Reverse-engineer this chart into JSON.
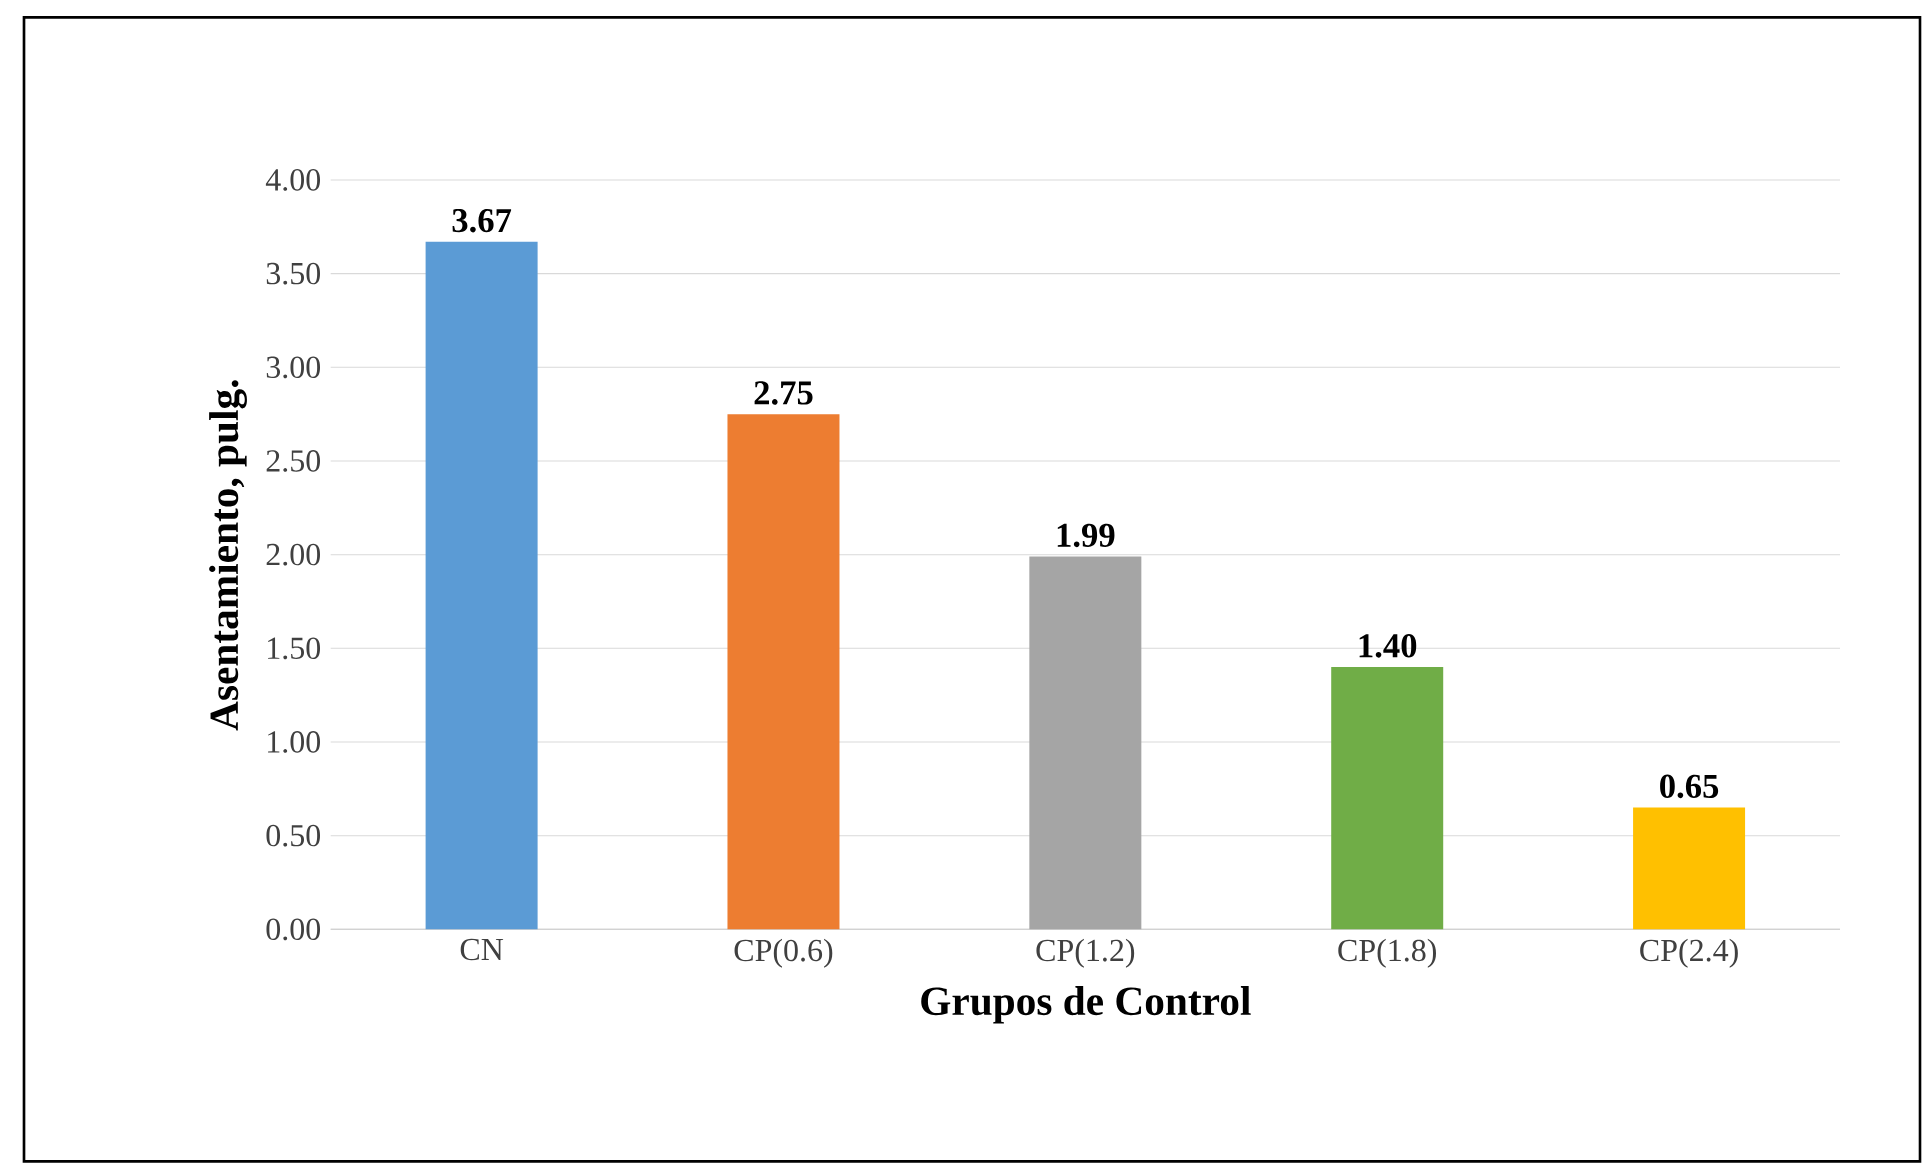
{
  "chart_data": {
    "type": "bar",
    "xlabel": "Grupos de Control",
    "ylabel": "Asentamiento, pulg.",
    "categories": [
      "CN",
      "CP(0.6)",
      "CP(1.2)",
      "CP(1.8)",
      "CP(2.4)"
    ],
    "values": [
      3.67,
      2.75,
      1.99,
      1.4,
      0.65
    ],
    "colors": [
      "#5b9bd5",
      "#ed7d31",
      "#a5a5a5",
      "#70ad47",
      "#ffc000"
    ],
    "value_labels": [
      "3.67",
      "2.75",
      "1.99",
      "1.40",
      "0.65"
    ],
    "ylim": [
      0,
      4
    ],
    "yticks": [
      {
        "value": 0,
        "label": "0.00"
      },
      {
        "value": 0.5,
        "label": "0.50"
      },
      {
        "value": 1,
        "label": "1.00"
      },
      {
        "value": 1.5,
        "label": "1.50"
      },
      {
        "value": 2,
        "label": "2.00"
      },
      {
        "value": 2.5,
        "label": "2.50"
      },
      {
        "value": 3,
        "label": "3.00"
      },
      {
        "value": 3.5,
        "label": "3.50"
      },
      {
        "value": 4,
        "label": "4.00"
      }
    ],
    "grid": "y"
  }
}
